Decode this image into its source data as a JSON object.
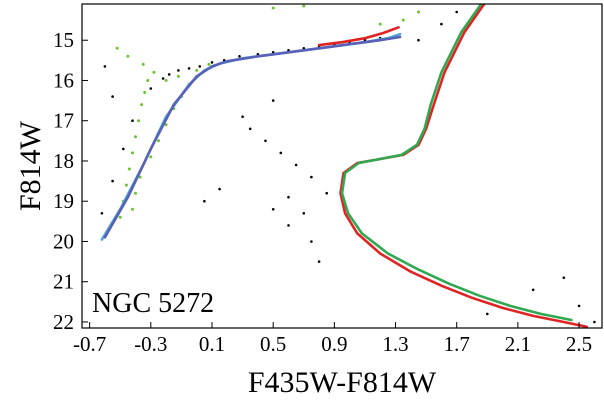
{
  "chart_data": {
    "type": "scatter",
    "title": "",
    "xlabel": "F435W-F814W",
    "ylabel": "F814W",
    "annotation": "NGC 5272",
    "xlim": [
      -0.75,
      2.65
    ],
    "ylim": [
      22.15,
      14.1
    ],
    "y_inverted": true,
    "x_ticks": [
      -0.7,
      -0.3,
      0.1,
      0.5,
      0.9,
      1.3,
      1.7,
      2.1,
      2.5
    ],
    "x_tick_labels": [
      "-0.7",
      "-0.3",
      "0.1",
      "0.5",
      "0.9",
      "1.3",
      "1.7",
      "2.1",
      "2.5"
    ],
    "y_ticks": [
      15,
      16,
      17,
      18,
      19,
      20,
      21,
      22
    ],
    "y_tick_labels": [
      "15",
      "16",
      "17",
      "18",
      "19",
      "20",
      "21",
      "22"
    ],
    "grid": false,
    "legend": "none",
    "series": [
      {
        "style": "scatter",
        "color": "#000000",
        "x": [
          -0.55,
          -0.48,
          -0.42,
          -0.3,
          -0.22,
          -0.18,
          -0.12,
          -0.05,
          0.02,
          0.1,
          0.18,
          0.28,
          0.4,
          0.5,
          0.6,
          0.7,
          0.8,
          0.9,
          1.0,
          1.1,
          1.2,
          1.3,
          1.45,
          1.6,
          1.7,
          1.85,
          0.35,
          0.45,
          0.55,
          0.65,
          0.75,
          0.85,
          0.5,
          0.6,
          0.75,
          0.8,
          0.6,
          0.7,
          0.3,
          0.5,
          1.9,
          2.2,
          2.5,
          2.4,
          2.6,
          -0.6,
          -0.55,
          -0.62,
          0.05,
          0.15
        ],
        "y": [
          18.5,
          17.7,
          17.0,
          16.2,
          15.95,
          15.85,
          15.75,
          15.7,
          15.65,
          15.55,
          15.5,
          15.4,
          15.35,
          15.3,
          15.25,
          15.2,
          15.15,
          15.1,
          15.05,
          15.0,
          14.95,
          14.9,
          15.0,
          14.6,
          14.3,
          14.2,
          17.2,
          17.5,
          17.8,
          18.1,
          18.4,
          18.8,
          19.2,
          19.6,
          20.0,
          20.5,
          18.9,
          19.3,
          16.9,
          16.5,
          21.8,
          21.2,
          21.6,
          20.9,
          22.0,
          15.65,
          16.4,
          19.3,
          19.0,
          18.7
        ]
      },
      {
        "style": "scatter",
        "color": "#6bc42f",
        "x": [
          -0.5,
          -0.48,
          -0.46,
          -0.44,
          -0.42,
          -0.4,
          -0.38,
          -0.36,
          -0.34,
          -0.32,
          -0.42,
          -0.4,
          -0.37,
          -0.3,
          -0.25,
          -0.2,
          -0.15,
          -0.1,
          -0.05,
          0.0,
          -0.52,
          -0.45,
          -0.35,
          -0.28,
          -0.2,
          -0.12,
          0.0,
          0.08,
          0.5,
          0.7,
          1.2,
          1.35,
          1.45
        ],
        "y": [
          19.4,
          19.0,
          18.6,
          18.2,
          17.8,
          17.4,
          17.0,
          16.6,
          16.3,
          16.0,
          19.2,
          18.8,
          18.4,
          17.9,
          17.5,
          17.1,
          16.7,
          16.4,
          16.1,
          15.9,
          15.2,
          15.4,
          15.6,
          15.8,
          16.0,
          15.9,
          15.75,
          15.6,
          14.2,
          14.15,
          14.6,
          14.5,
          14.3
        ]
      },
      {
        "style": "line",
        "color": "#4aa6d6",
        "x": [
          -0.62,
          -0.5,
          -0.35,
          -0.2,
          -0.05,
          0.05,
          0.15,
          0.3,
          0.5,
          0.7,
          0.9,
          1.1,
          1.25,
          1.33
        ],
        "y": [
          19.95,
          19.2,
          18.1,
          16.9,
          16.1,
          15.75,
          15.58,
          15.45,
          15.35,
          15.25,
          15.15,
          15.05,
          14.95,
          14.85
        ]
      },
      {
        "style": "line",
        "color": "#5860b8",
        "x": [
          -0.6,
          -0.45,
          -0.3,
          -0.15,
          0.0,
          0.1,
          0.2,
          0.4,
          0.6,
          0.8,
          1.0,
          1.2,
          1.33
        ],
        "y": [
          19.9,
          18.9,
          17.7,
          16.6,
          15.9,
          15.65,
          15.52,
          15.4,
          15.3,
          15.2,
          15.1,
          15.0,
          14.92
        ]
      },
      {
        "style": "line",
        "color": "#e02424",
        "x": [
          0.8,
          0.95,
          1.1,
          1.22,
          1.32
        ],
        "y": [
          15.12,
          15.05,
          14.95,
          14.82,
          14.68
        ]
      },
      {
        "style": "line",
        "color": "#e02424",
        "x": [
          1.88,
          1.75,
          1.62,
          1.55,
          1.5,
          1.45,
          1.35,
          1.2,
          1.05,
          0.96,
          0.94,
          0.97,
          1.05,
          1.2,
          1.4,
          1.6,
          1.8,
          2.0,
          2.2,
          2.4,
          2.55
        ],
        "y": [
          14.1,
          14.8,
          15.8,
          16.6,
          17.2,
          17.6,
          17.85,
          17.95,
          18.05,
          18.3,
          18.8,
          19.3,
          19.8,
          20.3,
          20.75,
          21.1,
          21.4,
          21.65,
          21.85,
          22.0,
          22.12
        ]
      },
      {
        "style": "line",
        "color": "#2fa84f",
        "x": [
          1.86,
          1.73,
          1.6,
          1.53,
          1.49,
          1.44,
          1.34,
          1.2,
          1.06,
          0.97,
          0.95,
          0.99,
          1.08,
          1.25,
          1.45,
          1.65,
          1.85,
          2.05,
          2.25,
          2.45
        ],
        "y": [
          14.1,
          14.8,
          15.8,
          16.6,
          17.2,
          17.6,
          17.85,
          17.95,
          18.05,
          18.3,
          18.8,
          19.3,
          19.8,
          20.3,
          20.7,
          21.05,
          21.35,
          21.6,
          21.8,
          21.95
        ]
      }
    ]
  }
}
